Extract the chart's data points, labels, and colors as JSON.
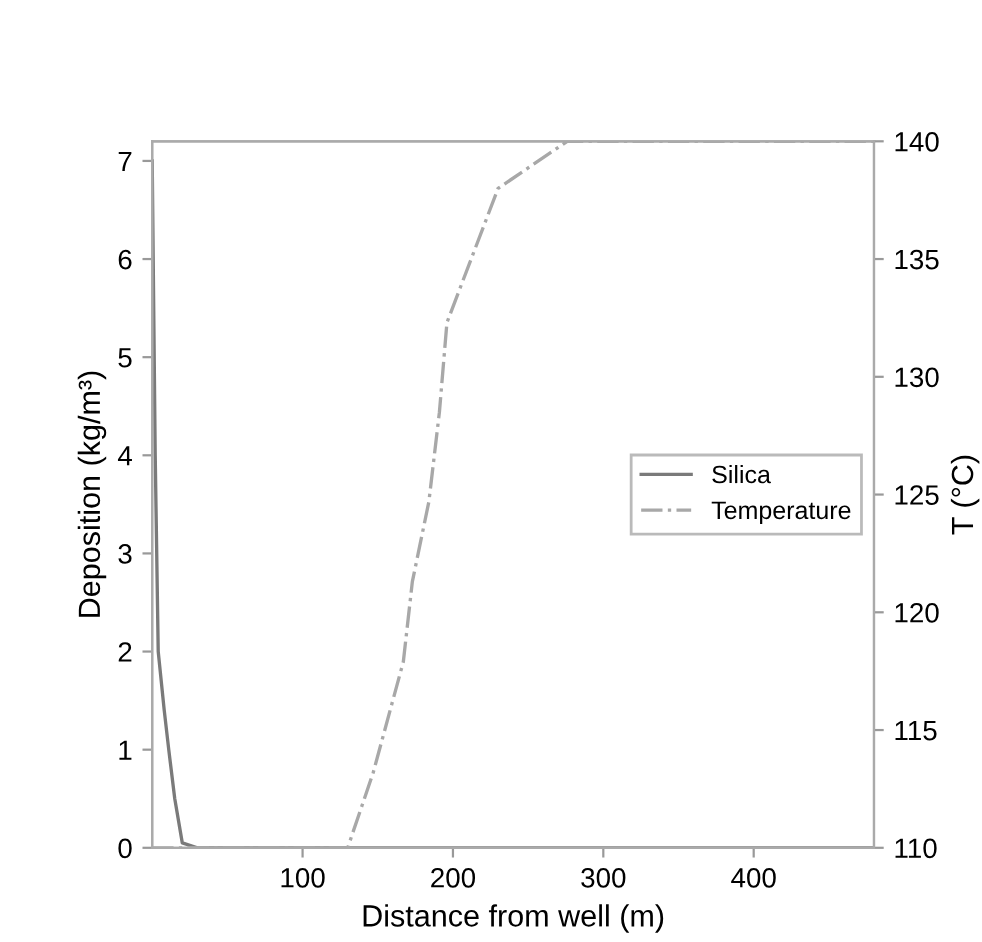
{
  "chart_data": {
    "type": "line",
    "xlabel": "Distance from well (m)",
    "ylabel": "Deposition (kg/m³)",
    "y2label": "T (°C)",
    "xlim": [
      0,
      480
    ],
    "xticks": [
      100,
      200,
      300,
      400
    ],
    "ylim": [
      0,
      7.2
    ],
    "yticks": [
      0,
      1,
      2,
      3,
      4,
      5,
      6,
      7
    ],
    "y2lim": [
      110,
      140
    ],
    "y2ticks": [
      110,
      115,
      120,
      125,
      130,
      135,
      140
    ],
    "legend": "right",
    "grid": false,
    "series": [
      {
        "name": "Silica",
        "color": "#7a7a7a",
        "line_style": "solid",
        "x": [
          0,
          2,
          4,
          8,
          11,
          15,
          20,
          30,
          480
        ],
        "values": [
          7.0,
          4.0,
          2.0,
          1.4,
          1.0,
          0.5,
          0.05,
          0,
          0
        ]
      },
      {
        "name": "Temperature",
        "color": "#a8a8a8",
        "line_style": "dashed",
        "axis": "y2",
        "x": [
          0,
          130,
          147,
          167,
          173,
          184,
          191,
          196,
          230,
          276,
          480
        ],
        "values": [
          110,
          110,
          113.2,
          117.9,
          121.3,
          124.7,
          128.5,
          132.3,
          138,
          140,
          140
        ]
      }
    ]
  }
}
